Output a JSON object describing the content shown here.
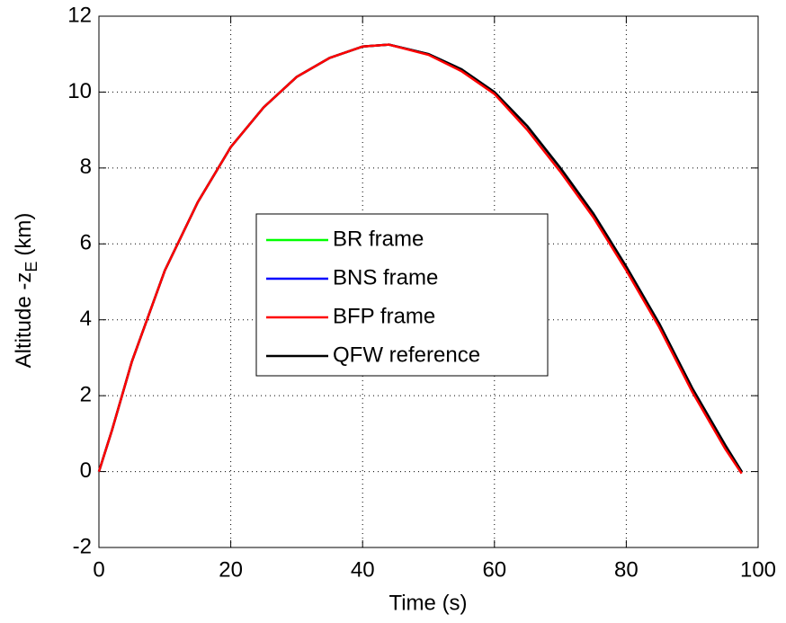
{
  "chart_data": {
    "type": "line",
    "xlabel": "Time (s)",
    "ylabel": {
      "text": "Altitude -z",
      "subscript": "E",
      "unit": "(km)"
    },
    "x": [
      0,
      2,
      5,
      10,
      15,
      20,
      25,
      30,
      35,
      40,
      44,
      50,
      55,
      60,
      65,
      70,
      75,
      80,
      85,
      90,
      95,
      97.5
    ],
    "series": [
      {
        "name": "BR frame",
        "color": "#00ff00",
        "values": [
          0,
          1.1,
          2.9,
          5.3,
          7.1,
          8.55,
          9.6,
          10.4,
          10.9,
          11.2,
          11.25,
          11.0,
          10.6,
          10.0,
          9.1,
          8.0,
          6.8,
          5.4,
          3.9,
          2.2,
          0.7,
          0
        ]
      },
      {
        "name": "BNS frame",
        "color": "#0000ff",
        "values": [
          0,
          1.1,
          2.9,
          5.3,
          7.1,
          8.55,
          9.6,
          10.4,
          10.9,
          11.2,
          11.25,
          11.0,
          10.6,
          10.0,
          9.1,
          8.0,
          6.8,
          5.4,
          3.9,
          2.2,
          0.7,
          0
        ]
      },
      {
        "name": "QFW reference",
        "color": "#000000",
        "values": [
          0,
          1.1,
          2.9,
          5.3,
          7.1,
          8.55,
          9.6,
          10.4,
          10.9,
          11.2,
          11.25,
          11.0,
          10.6,
          10.0,
          9.1,
          8.0,
          6.8,
          5.4,
          3.9,
          2.2,
          0.7,
          0
        ]
      },
      {
        "name": "BFP frame",
        "color": "#ff0000",
        "values": [
          0,
          1.1,
          2.9,
          5.3,
          7.1,
          8.55,
          9.6,
          10.4,
          10.9,
          11.2,
          11.25,
          10.98,
          10.55,
          9.95,
          9.0,
          7.9,
          6.7,
          5.3,
          3.8,
          2.1,
          0.6,
          -0.05
        ]
      }
    ],
    "legend_order": [
      0,
      1,
      3,
      2
    ],
    "xlim": [
      0,
      100
    ],
    "xticks": [
      0,
      20,
      40,
      60,
      80,
      100
    ],
    "ylim": [
      -2,
      12
    ],
    "yticks": [
      -2,
      0,
      2,
      4,
      6,
      8,
      10,
      12
    ],
    "grid": true,
    "legend": "center"
  }
}
